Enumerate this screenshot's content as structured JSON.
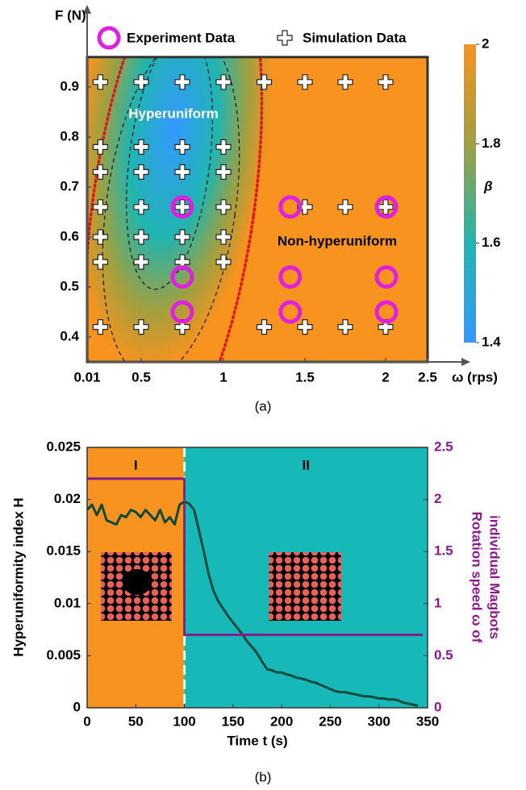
{
  "chart_data": [
    {
      "type": "scatter",
      "x_label": "ω (rps)",
      "y_label": "F (N)",
      "xlim": [
        0.01,
        2.5
      ],
      "xticks": [
        0.01,
        0.5,
        1,
        1.5,
        2,
        2.5
      ],
      "ylim": [
        0.35,
        0.96
      ],
      "yticks": [
        0.4,
        0.5,
        0.6,
        0.7,
        0.8,
        0.9
      ],
      "background_color": "#f7931e",
      "series": [
        {
          "name": "Experiment Data",
          "color": "#e020e0",
          "marker": "circle",
          "x": [
            0.75,
            0.75,
            0.75,
            1.41,
            1.41,
            1.41,
            2.01,
            2.01,
            2.01
          ],
          "values": [
            0.66,
            0.52,
            0.45,
            0.66,
            0.52,
            0.45,
            0.66,
            0.52,
            0.45
          ]
        },
        {
          "name": "Simulation Data",
          "color": "#ffffff",
          "marker": "plus",
          "x": [
            0.13,
            0.5,
            0.75,
            1,
            1.25,
            1.5,
            1.75,
            2,
            0.13,
            0.5,
            0.75,
            1,
            0.13,
            0.5,
            0.75,
            1,
            0.13,
            0.5,
            0.75,
            1,
            1.5,
            1.75,
            2,
            0.13,
            0.5,
            0.75,
            1,
            0.13,
            0.5,
            0.75,
            1,
            0.13,
            0.5,
            0.75,
            1.25,
            1.5,
            1.75,
            2
          ],
          "values": [
            0.91,
            0.91,
            0.91,
            0.91,
            0.91,
            0.91,
            0.91,
            0.91,
            0.78,
            0.78,
            0.78,
            0.78,
            0.73,
            0.73,
            0.73,
            0.73,
            0.66,
            0.66,
            0.66,
            0.66,
            0.66,
            0.66,
            0.66,
            0.6,
            0.6,
            0.6,
            0.6,
            0.55,
            0.55,
            0.55,
            0.55,
            0.42,
            0.42,
            0.42,
            0.42,
            0.42,
            0.42,
            0.42
          ]
        }
      ],
      "colorbar": {
        "label": "β",
        "lim": [
          1.4,
          2
        ],
        "ticks": [
          1.4,
          1.6,
          1.8,
          2
        ],
        "colors": [
          "#3399ff",
          "#20b5b0",
          "#a0a040",
          "#f7931e"
        ]
      },
      "annotations": [
        "Hyperuniform",
        "Non-hyperuniform"
      ],
      "caption": "(a)"
    },
    {
      "type": "line",
      "x_label": "Time t (s)",
      "y_label": "Hyperuniformity index H",
      "y2_label": [
        "Rotation speed ω of",
        "individual Magbots"
      ],
      "xlim": [
        0,
        350
      ],
      "xticks": [
        0,
        50,
        100,
        150,
        200,
        250,
        300,
        350
      ],
      "ylim": [
        0,
        0.025
      ],
      "yticks": [
        0,
        0.005,
        0.01,
        0.015,
        0.02,
        0.025
      ],
      "y2lim": [
        0,
        2.5
      ],
      "y2ticks": [
        0,
        0.5,
        1,
        1.5,
        2,
        2.5
      ],
      "y2_color": "#8b1a8b",
      "regions": [
        {
          "label": "I",
          "range": [
            0,
            100
          ],
          "color": "#f7931e"
        },
        {
          "label": "II",
          "range": [
            100,
            350
          ],
          "color": "#17b8b8"
        }
      ],
      "series": [
        {
          "color": "#0d4a3c",
          "x": [
            0,
            5,
            10,
            15,
            20,
            25,
            30,
            35,
            40,
            45,
            50,
            55,
            60,
            65,
            70,
            75,
            80,
            85,
            90,
            95,
            100,
            105,
            110,
            115,
            120,
            125,
            130,
            135,
            140,
            145,
            150,
            155,
            160,
            165,
            170,
            175,
            180,
            185,
            190,
            195,
            200,
            205,
            210,
            215,
            220,
            225,
            230,
            235,
            240,
            245,
            250,
            255,
            260,
            265,
            270,
            275,
            280,
            285,
            290,
            295,
            300,
            305,
            310,
            315,
            320,
            325,
            330,
            335,
            340
          ],
          "values": [
            0.019,
            0.0195,
            0.0185,
            0.0195,
            0.018,
            0.0178,
            0.0176,
            0.0185,
            0.0183,
            0.019,
            0.0188,
            0.0183,
            0.019,
            0.0185,
            0.018,
            0.019,
            0.0178,
            0.0183,
            0.0176,
            0.0195,
            0.0198,
            0.0196,
            0.019,
            0.017,
            0.015,
            0.0128,
            0.0112,
            0.0102,
            0.0095,
            0.0088,
            0.0082,
            0.0076,
            0.007,
            0.0063,
            0.0058,
            0.0052,
            0.0044,
            0.0037,
            0.0036,
            0.0034,
            0.0034,
            0.0032,
            0.0031,
            0.0029,
            0.0028,
            0.0027,
            0.0025,
            0.0024,
            0.0022,
            0.002,
            0.0018,
            0.0016,
            0.0015,
            0.0015,
            0.0014,
            0.0013,
            0.0012,
            0.0011,
            0.0011,
            0.001,
            0.0009,
            0.0009,
            0.0008,
            0.0008,
            0.0007,
            0.0005,
            0.0004,
            0.0003,
            0.0002
          ]
        },
        {
          "color": "#8b1a8b",
          "axis": "y2",
          "x": [
            0,
            100,
            100,
            345
          ],
          "values": [
            2.2,
            2.2,
            0.7,
            0.7
          ]
        }
      ],
      "caption": "(b)"
    }
  ]
}
